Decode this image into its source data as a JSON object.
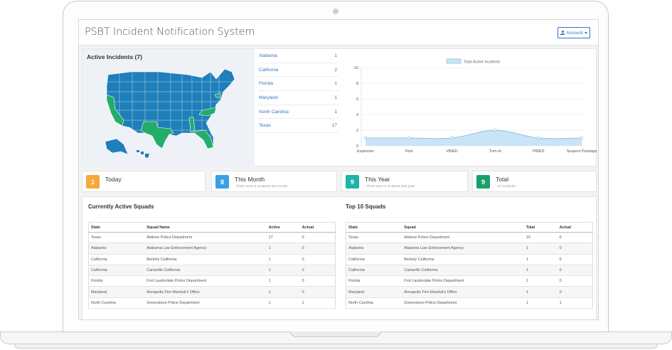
{
  "app": {
    "title": "PSBT Incident Notification System",
    "account_label": "Account"
  },
  "map": {
    "title": "Active Incidents (7)",
    "active_color": "#22ad6a",
    "inactive_color": "#1e7fba",
    "active_states": [
      "California",
      "Texas",
      "Florida",
      "Alabama",
      "North Carolina",
      "Maryland"
    ]
  },
  "state_counts": [
    {
      "state": "Alabama",
      "count": "1"
    },
    {
      "state": "California",
      "count": "2"
    },
    {
      "state": "Florida",
      "count": "1"
    },
    {
      "state": "Maryland",
      "count": "1"
    },
    {
      "state": "North Carolina",
      "count": "1"
    },
    {
      "state": "Texas",
      "count": "17"
    }
  ],
  "chart_data": {
    "type": "area",
    "legend": "Total Active Incidents",
    "legend_position": "top",
    "categories": [
      "Explosion",
      "Find",
      "VBIED",
      "Turn-In",
      "PBIED",
      "Suspect Package"
    ],
    "values": [
      1,
      1,
      1,
      2,
      1,
      1
    ],
    "ylim": [
      0,
      10
    ],
    "yticks": [
      "0",
      "2",
      "4",
      "6",
      "8",
      "10"
    ],
    "grid": true,
    "fill_color": "#c8e4f6",
    "line_color": "#8fc3e6"
  },
  "stats": [
    {
      "value": "1",
      "title": "Today",
      "subtitle": "",
      "color": "#f5a937"
    },
    {
      "value": "8",
      "title": "This Month",
      "subtitle": "There were 0 incidents last month.",
      "color": "#3aa0e6"
    },
    {
      "value": "9",
      "title": "This Year",
      "subtitle": "There were 0 incidents last year.",
      "color": "#1bb5a8"
    },
    {
      "value": "9",
      "title": "Total",
      "subtitle": "All Incidents",
      "color": "#1aa06a"
    }
  ],
  "active_squads": {
    "title": "Currently Active Squads",
    "headers": [
      "State",
      "Squad Name",
      "Active",
      "Actual"
    ],
    "rows": [
      [
        "Texas",
        "Abilene Police Department",
        "17",
        "0"
      ],
      [
        "Alabama",
        "Alabama Law Enforcement Agency",
        "1",
        "0"
      ],
      [
        "California",
        "Berkely California",
        "1",
        "0"
      ],
      [
        "California",
        "Camarillo California",
        "1",
        "0"
      ],
      [
        "Florida",
        "Fort Lauderdale Police Department",
        "1",
        "0"
      ],
      [
        "Maryland",
        "Annapolis Fire Marshal's Office",
        "1",
        "0"
      ],
      [
        "North Carolina",
        "Greensboro Police Department",
        "1",
        "1"
      ]
    ]
  },
  "top_squads": {
    "title": "Top 10 Squads",
    "headers": [
      "State",
      "Squad",
      "Total",
      "Actual"
    ],
    "rows": [
      [
        "Texas",
        "Abilene Police Department",
        "19",
        "0"
      ],
      [
        "Alabama",
        "Alabama Law Enforcement Agency",
        "1",
        "0"
      ],
      [
        "California",
        "Berkely California",
        "1",
        "0"
      ],
      [
        "California",
        "Camarillo California",
        "1",
        "0"
      ],
      [
        "Florida",
        "Fort Lauderdale Police Department",
        "1",
        "0"
      ],
      [
        "Maryland",
        "Annapolis Fire Marshal's Office",
        "1",
        "0"
      ],
      [
        "North Carolina",
        "Greensboro Police Department",
        "1",
        "1"
      ]
    ]
  }
}
